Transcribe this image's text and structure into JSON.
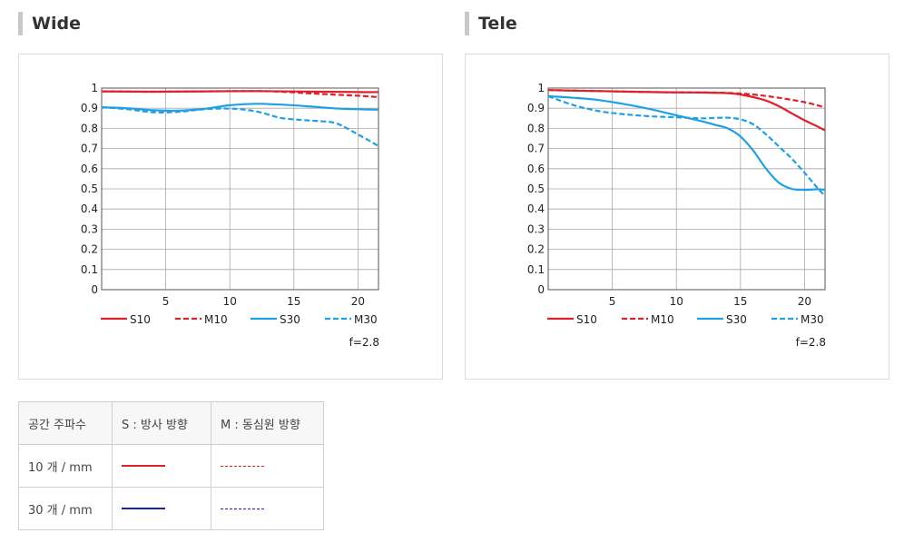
{
  "charts": [
    {
      "heading": "Wide"
    },
    {
      "heading": "Tele"
    }
  ],
  "chart_data": [
    {
      "type": "line",
      "title": "Wide",
      "xlim": [
        0,
        21.6
      ],
      "ylim": [
        0,
        1
      ],
      "xticks": [
        "5",
        "10",
        "15",
        "20"
      ],
      "yticks": [
        "0",
        "0.1",
        "0.2",
        "0.3",
        "0.4",
        "0.5",
        "0.6",
        "0.7",
        "0.8",
        "0.9",
        "1"
      ],
      "grid": true,
      "legend_position": "bottom",
      "annotation": "f=2.8",
      "series": [
        {
          "name": "S10",
          "color": "#e0202a",
          "dash": false,
          "x": [
            0,
            4,
            8,
            12,
            16,
            20,
            21.6
          ],
          "y": [
            0.984,
            0.982,
            0.984,
            0.985,
            0.983,
            0.98,
            0.98
          ]
        },
        {
          "name": "M10",
          "color": "#e0202a",
          "dash": true,
          "x": [
            0,
            4,
            8,
            12,
            14,
            16,
            18,
            20,
            21.6
          ],
          "y": [
            0.984,
            0.982,
            0.984,
            0.985,
            0.982,
            0.975,
            0.968,
            0.962,
            0.955
          ]
        },
        {
          "name": "S30",
          "color": "#1ea0e6",
          "dash": false,
          "x": [
            0,
            2,
            4,
            6,
            8,
            10,
            12,
            14,
            16,
            18,
            20,
            21.6
          ],
          "y": [
            0.905,
            0.9,
            0.89,
            0.888,
            0.897,
            0.915,
            0.922,
            0.918,
            0.91,
            0.9,
            0.895,
            0.893
          ]
        },
        {
          "name": "M30",
          "color": "#1ea0e6",
          "dash": true,
          "x": [
            0,
            2,
            4,
            6,
            8,
            10,
            12,
            14,
            16,
            18,
            19,
            20,
            21,
            21.6
          ],
          "y": [
            0.905,
            0.895,
            0.88,
            0.882,
            0.895,
            0.898,
            0.885,
            0.852,
            0.84,
            0.83,
            0.805,
            0.77,
            0.735,
            0.712
          ]
        }
      ]
    },
    {
      "type": "line",
      "title": "Tele",
      "xlim": [
        0,
        21.6
      ],
      "ylim": [
        0,
        1
      ],
      "xticks": [
        "5",
        "10",
        "15",
        "20"
      ],
      "yticks": [
        "0",
        "0.1",
        "0.2",
        "0.3",
        "0.4",
        "0.5",
        "0.6",
        "0.7",
        "0.8",
        "0.9",
        "1"
      ],
      "grid": true,
      "legend_position": "bottom",
      "annotation": "f=2.8",
      "series": [
        {
          "name": "S10",
          "color": "#e0202a",
          "dash": false,
          "x": [
            0,
            4,
            8,
            12,
            14,
            15,
            16,
            17,
            18,
            19,
            20,
            21,
            21.6
          ],
          "y": [
            0.99,
            0.985,
            0.98,
            0.978,
            0.975,
            0.968,
            0.955,
            0.938,
            0.91,
            0.875,
            0.84,
            0.81,
            0.79
          ]
        },
        {
          "name": "M10",
          "color": "#e0202a",
          "dash": true,
          "x": [
            0,
            4,
            8,
            12,
            14,
            16,
            18,
            20,
            21.6
          ],
          "y": [
            0.99,
            0.985,
            0.98,
            0.978,
            0.976,
            0.968,
            0.952,
            0.93,
            0.905
          ]
        },
        {
          "name": "S30",
          "color": "#1ea0e6",
          "dash": false,
          "x": [
            0,
            2,
            4,
            6,
            8,
            10,
            12,
            13,
            14,
            15,
            16,
            17,
            18,
            19,
            20,
            21,
            21.6
          ],
          "y": [
            0.96,
            0.952,
            0.94,
            0.92,
            0.895,
            0.865,
            0.835,
            0.818,
            0.8,
            0.76,
            0.69,
            0.6,
            0.53,
            0.5,
            0.495,
            0.498,
            0.495
          ]
        },
        {
          "name": "M30",
          "color": "#1ea0e6",
          "dash": true,
          "x": [
            0,
            2,
            4,
            6,
            8,
            10,
            12,
            13,
            14,
            15,
            16,
            17,
            18,
            19,
            20,
            21,
            21.6
          ],
          "y": [
            0.96,
            0.915,
            0.885,
            0.87,
            0.86,
            0.855,
            0.85,
            0.852,
            0.853,
            0.845,
            0.82,
            0.77,
            0.71,
            0.65,
            0.58,
            0.505,
            0.465
          ]
        }
      ]
    }
  ],
  "legend_table": {
    "header": [
      "공간 주파수",
      "S : 방사 방향",
      "M : 동심원 방향"
    ],
    "rows": [
      {
        "label": "10 개 / mm",
        "color": "#e0202a"
      },
      {
        "label": "30 개 / mm",
        "color": "#1a22b4"
      }
    ]
  }
}
